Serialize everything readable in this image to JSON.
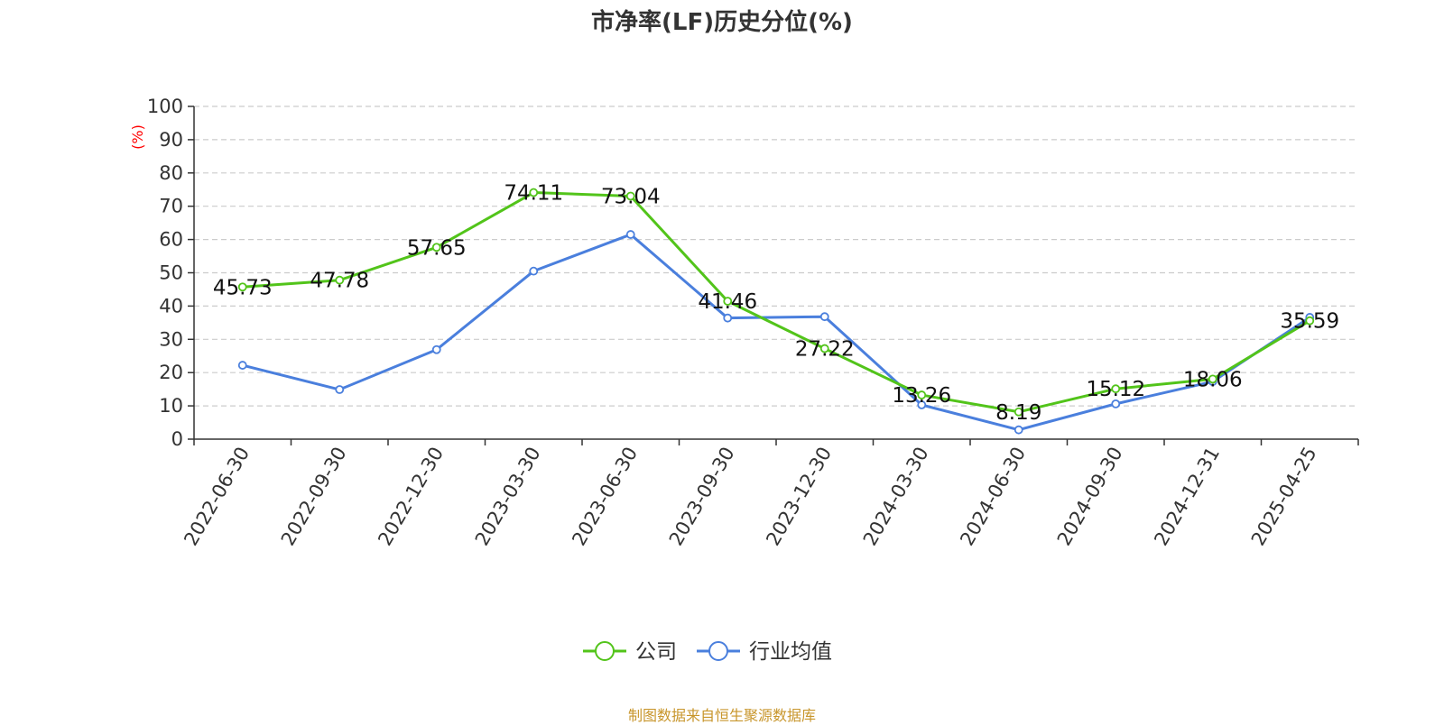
{
  "chart_data": {
    "type": "line",
    "title": "市净率(LF)历史分位(%)",
    "ylabel": "(%)",
    "ylim": [
      0,
      100
    ],
    "yticks": [
      0,
      10,
      20,
      30,
      40,
      50,
      60,
      70,
      80,
      90,
      100
    ],
    "grid": true,
    "legend_position": "bottom",
    "categories": [
      "2022-06-30",
      "2022-09-30",
      "2022-12-30",
      "2023-03-30",
      "2023-06-30",
      "2023-09-30",
      "2023-12-30",
      "2024-03-30",
      "2024-06-30",
      "2024-09-30",
      "2024-12-31",
      "2025-04-25"
    ],
    "series": [
      {
        "name": "公司",
        "color": "#52c41a",
        "values": [
          45.73,
          47.78,
          57.65,
          74.11,
          73.04,
          41.46,
          27.22,
          13.26,
          8.19,
          15.12,
          18.06,
          35.59
        ],
        "labels": [
          "45.73",
          "47.78",
          "57.65",
          "74.11",
          "73.04",
          "41.46",
          "27.22",
          "13.26",
          "8.19",
          "15.12",
          "18.06",
          "35.59"
        ]
      },
      {
        "name": "行业均值",
        "color": "#4a7fdd",
        "values": [
          22.2,
          14.9,
          26.9,
          50.5,
          61.5,
          36.4,
          36.8,
          10.3,
          2.8,
          10.6,
          17.3,
          36.6
        ]
      }
    ],
    "source": "制图数据来自恒生聚源数据库"
  }
}
